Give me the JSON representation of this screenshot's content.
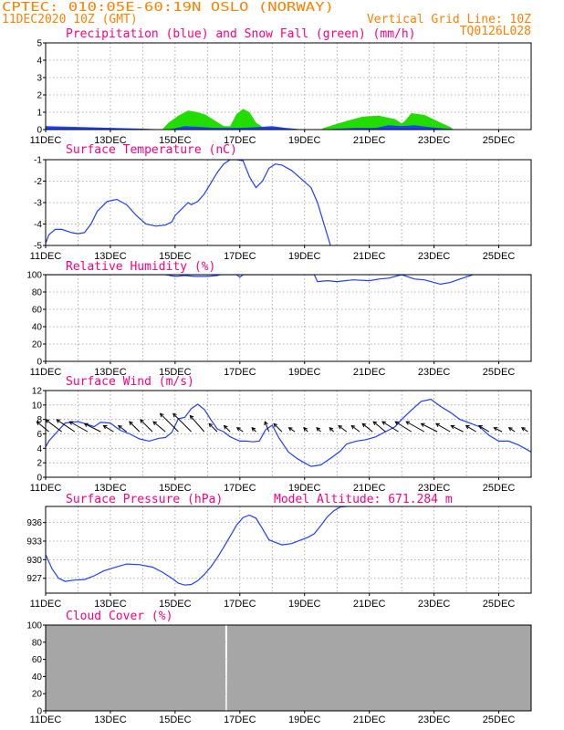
{
  "header": {
    "line1_left": "CPTEC:  010:05E-60:19N  OSLO (NORWAY)",
    "line2_left": "11DEC2020 10Z (GMT)",
    "line1_right": "Vertical Grid Line: 10Z",
    "line2_right": "TQ0126L028"
  },
  "colors": {
    "header": "#ff8000",
    "title": "#ff0080",
    "line": "#1f3fff",
    "precip": "#1f3fff",
    "snow": "#22dd00",
    "cloud": "#a6a6a6",
    "arrow": "#000000"
  },
  "x_ticks": [
    "11DEC",
    "13DEC",
    "15DEC",
    "17DEC",
    "19DEC",
    "21DEC",
    "23DEC",
    "25DEC"
  ],
  "panel_titles": {
    "precip": "Precipitation (blue) and Snow Fall (green) (mm/h)",
    "temp": "Surface Temperature (nC)",
    "rh": "Relative Humidity (%)",
    "wind": "Surface Wind (m/s)",
    "pressure": "Surface Pressure (hPa)",
    "cloud": "Cloud Cover (%)"
  },
  "model_altitude_label": "Model Altitude: 671.284 m",
  "chart_data": [
    {
      "type": "area",
      "id": "precip",
      "title": "Precipitation (blue) and Snow Fall (green) (mm/h)",
      "xlim": [
        0,
        15
      ],
      "ylim": [
        0,
        5
      ],
      "yticks": [
        0,
        1,
        2,
        3,
        4,
        5
      ],
      "grid": true,
      "series": [
        {
          "name": "Precipitation",
          "x": [
            0,
            1,
            2,
            3,
            3.8,
            4.3,
            4.8,
            5.2,
            5.6,
            6,
            6.6,
            7,
            7.4,
            8,
            8.6,
            9,
            9.6,
            10.2,
            10.6,
            11,
            11.4,
            11.8,
            12.4,
            12.8,
            13.2,
            13.6,
            14,
            15
          ],
          "values": [
            0.2,
            0.15,
            0.1,
            0.05,
            0,
            0.2,
            0.15,
            0.1,
            0.1,
            0.1,
            0.15,
            0.2,
            0.1,
            0,
            0,
            0.05,
            0.1,
            0.1,
            0.25,
            0.2,
            0.25,
            0.15,
            0.05,
            0,
            0,
            0,
            0,
            0
          ]
        },
        {
          "name": "Snow Fall",
          "x": [
            0,
            3.5,
            3.6,
            3.8,
            4.1,
            4.4,
            4.7,
            4.95,
            5.2,
            5.5,
            5.7,
            5.9,
            6.1,
            6.3,
            6.5,
            6.7,
            7,
            7.5,
            8,
            8.5,
            8.6,
            9.3,
            9.8,
            10.3,
            10.8,
            11,
            11.1,
            11.3,
            11.7,
            12.2,
            12.5,
            12.6,
            15
          ],
          "values": [
            0,
            0,
            0,
            0.4,
            0.8,
            1.1,
            1.0,
            0.85,
            0.55,
            0.2,
            0.2,
            0.9,
            1.2,
            1.0,
            0.4,
            0.15,
            0.1,
            0.05,
            0,
            0,
            0.1,
            0.5,
            0.75,
            0.8,
            0.6,
            0.35,
            0.5,
            0.95,
            0.85,
            0.4,
            0.15,
            0,
            0
          ]
        }
      ]
    },
    {
      "type": "line",
      "id": "temp",
      "title": "Surface Temperature (nC)",
      "xlim": [
        0,
        15
      ],
      "ylim": [
        -5,
        -1
      ],
      "yticks": [
        -5,
        -4,
        -3,
        -2,
        -1
      ],
      "grid": true,
      "series": [
        {
          "name": "",
          "x": [
            0,
            0.1,
            0.3,
            0.5,
            0.8,
            1,
            1.2,
            1.4,
            1.6,
            1.9,
            2.2,
            2.5,
            2.8,
            3.1,
            3.4,
            3.7,
            3.9,
            4.0,
            4.2,
            4.4,
            4.5,
            4.7,
            4.9,
            5.1,
            5.3,
            5.5,
            5.7,
            5.9,
            6.1,
            6.3,
            6.5,
            6.7,
            6.9,
            7.1,
            7.3,
            7.6,
            7.9,
            8.2,
            8.4,
            8.6,
            8.8
          ],
          "values": [
            -4.9,
            -4.5,
            -4.25,
            -4.25,
            -4.4,
            -4.45,
            -4.4,
            -4.0,
            -3.4,
            -2.95,
            -2.85,
            -3.1,
            -3.6,
            -4.0,
            -4.1,
            -4.05,
            -3.9,
            -3.6,
            -3.3,
            -3.0,
            -3.1,
            -2.95,
            -2.6,
            -2.1,
            -1.6,
            -1.2,
            -1.0,
            -1.0,
            -1.05,
            -1.8,
            -2.3,
            -2.0,
            -1.4,
            -1.2,
            -1.25,
            -1.5,
            -1.9,
            -2.3,
            -3.0,
            -4.0,
            -5.0
          ]
        }
      ]
    },
    {
      "type": "line",
      "id": "rh",
      "title": "Relative Humidity (%)",
      "xlim": [
        0,
        15
      ],
      "ylim": [
        0,
        100
      ],
      "yticks": [
        0,
        20,
        40,
        60,
        80,
        100
      ],
      "grid": true,
      "series": [
        {
          "name": "",
          "x": [
            0,
            3.7,
            4.0,
            4.3,
            4.6,
            5.0,
            5.3,
            5.4,
            5.9,
            6.0,
            6.1,
            6.2,
            8.3,
            8.4,
            8.7,
            9,
            9.5,
            10,
            10.3,
            10.6,
            11,
            11.4,
            11.7,
            12,
            12.2,
            12.5,
            12.8,
            13.2,
            15
          ],
          "values": [
            100,
            100,
            98,
            99,
            98,
            98,
            99,
            100,
            100,
            97,
            100,
            100,
            100,
            92,
            93,
            92,
            94,
            93,
            95,
            96,
            100,
            95,
            94,
            91,
            89,
            91,
            95,
            100,
            100
          ]
        }
      ]
    },
    {
      "type": "line",
      "id": "wind",
      "title": "Surface Wind (m/s)",
      "xlim": [
        0,
        15
      ],
      "ylim": [
        0,
        12
      ],
      "yticks": [
        0,
        2,
        4,
        6,
        8,
        10,
        12
      ],
      "grid": true,
      "series": [
        {
          "name": "",
          "x": [
            0,
            0.1,
            0.3,
            0.6,
            1,
            1.3,
            1.5,
            1.7,
            2,
            2.3,
            2.6,
            2.9,
            3.2,
            3.5,
            3.7,
            3.9,
            4.1,
            4.3,
            4.5,
            4.7,
            4.9,
            5.1,
            5.3,
            5.5,
            5.7,
            6,
            6.2,
            6.4,
            6.6,
            6.8,
            7,
            7.2,
            7.5,
            7.8,
            8.0,
            8.2,
            8.5,
            8.8,
            9.1,
            9.3,
            9.6,
            9.9,
            10.2,
            10.5,
            10.8,
            11,
            11.3,
            11.6,
            11.9,
            12.2,
            12.5,
            12.8,
            13.1,
            13.4,
            13.7,
            14,
            14.3,
            14.6,
            14.8,
            15
          ],
          "values": [
            4.2,
            5,
            6,
            7.5,
            7.7,
            7.3,
            7,
            7.6,
            7.5,
            6.5,
            6,
            5.3,
            5,
            5.4,
            5.5,
            6.2,
            8.1,
            8.3,
            9.5,
            10.1,
            9.4,
            8,
            6.7,
            6.3,
            5.6,
            5,
            5,
            4.9,
            5,
            6.6,
            7.2,
            5.5,
            3.5,
            2.5,
            2,
            1.5,
            1.7,
            2.6,
            3.6,
            4.6,
            5,
            5.2,
            5.6,
            6.3,
            7,
            8,
            9.3,
            10.5,
            10.8,
            9.8,
            9,
            8,
            7.5,
            7,
            5.8,
            5,
            5,
            4.5,
            4,
            3.5
          ]
        }
      ],
      "wind_vectors": [
        {
          "x": 0.1,
          "u": -0.6,
          "v": 0.5
        },
        {
          "x": 0.5,
          "u": -0.8,
          "v": 0.6
        },
        {
          "x": 0.9,
          "u": -0.9,
          "v": 0.6
        },
        {
          "x": 1.3,
          "u": -0.9,
          "v": 0.5
        },
        {
          "x": 1.7,
          "u": -0.8,
          "v": 0.4
        },
        {
          "x": 2.1,
          "u": -0.5,
          "v": 0.3
        },
        {
          "x": 2.5,
          "u": -0.4,
          "v": 0.3
        },
        {
          "x": 2.9,
          "u": -0.5,
          "v": 0.5
        },
        {
          "x": 3.3,
          "u": -0.6,
          "v": 0.6
        },
        {
          "x": 3.7,
          "u": -0.6,
          "v": 0.5
        },
        {
          "x": 4.1,
          "u": -0.9,
          "v": 0.9
        },
        {
          "x": 4.5,
          "u": -0.9,
          "v": 0.9
        },
        {
          "x": 4.9,
          "u": -0.7,
          "v": 0.8
        },
        {
          "x": 5.3,
          "u": -0.4,
          "v": 0.4
        },
        {
          "x": 5.7,
          "u": -0.3,
          "v": 0.3
        },
        {
          "x": 6.1,
          "u": -0.3,
          "v": 0.2
        },
        {
          "x": 6.5,
          "u": -0.2,
          "v": 0.2
        },
        {
          "x": 6.9,
          "u": -0.2,
          "v": 0.5
        },
        {
          "x": 7.3,
          "u": -0.4,
          "v": 0.4
        },
        {
          "x": 7.7,
          "u": -0.3,
          "v": 0.2
        },
        {
          "x": 8.1,
          "u": -0.2,
          "v": 0.2
        },
        {
          "x": 8.5,
          "u": -0.2,
          "v": 0.2
        },
        {
          "x": 8.9,
          "u": -0.2,
          "v": 0.2
        },
        {
          "x": 9.3,
          "u": -0.4,
          "v": 0.3
        },
        {
          "x": 9.7,
          "u": -0.4,
          "v": 0.3
        },
        {
          "x": 10.1,
          "u": -0.5,
          "v": 0.4
        },
        {
          "x": 10.5,
          "u": -0.6,
          "v": 0.5
        },
        {
          "x": 10.9,
          "u": -0.8,
          "v": 0.5
        },
        {
          "x": 11.3,
          "u": -0.8,
          "v": 0.5
        },
        {
          "x": 11.7,
          "u": -0.9,
          "v": 0.5
        },
        {
          "x": 12.1,
          "u": -0.8,
          "v": 0.4
        },
        {
          "x": 12.5,
          "u": -0.7,
          "v": 0.4
        },
        {
          "x": 12.9,
          "u": -0.6,
          "v": 0.3
        },
        {
          "x": 13.3,
          "u": -0.5,
          "v": 0.3
        },
        {
          "x": 13.7,
          "u": -0.5,
          "v": 0.3
        },
        {
          "x": 14.1,
          "u": -0.4,
          "v": 0.2
        },
        {
          "x": 14.5,
          "u": -0.3,
          "v": 0.2
        },
        {
          "x": 14.9,
          "u": -0.3,
          "v": 0.2
        }
      ]
    },
    {
      "type": "line",
      "id": "pressure",
      "title": "Surface Pressure (hPa)",
      "xlim": [
        0,
        15
      ],
      "ylim": [
        924.6,
        938.6
      ],
      "yticks": [
        927,
        930,
        933,
        936
      ],
      "grid": true,
      "series": [
        {
          "name": "",
          "x": [
            0,
            0.2,
            0.4,
            0.6,
            0.9,
            1.2,
            1.5,
            1.8,
            2.1,
            2.5,
            2.9,
            3.3,
            3.6,
            3.9,
            4.1,
            4.3,
            4.5,
            4.7,
            4.9,
            5.1,
            5.3,
            5.5,
            5.7,
            5.9,
            6.1,
            6.3,
            6.5,
            6.7,
            6.9,
            7.1,
            7.3,
            7.6,
            7.9,
            8.1,
            8.3,
            8.5,
            8.7,
            8.9,
            9.1,
            9.3
          ],
          "values": [
            930.8,
            928.5,
            927,
            926.5,
            926.7,
            926.8,
            927.4,
            928.2,
            928.7,
            929.3,
            929.2,
            928.8,
            928,
            927,
            926.2,
            925.9,
            926,
            926.6,
            927.6,
            928.8,
            930.3,
            932,
            933.8,
            935.6,
            936.8,
            937.2,
            936.7,
            935,
            933.2,
            932.8,
            932.4,
            932.6,
            933.2,
            933.6,
            934.2,
            935.5,
            936.9,
            937.9,
            938.5,
            938.6
          ]
        }
      ]
    },
    {
      "type": "area",
      "id": "cloud",
      "title": "Cloud Cover (%)",
      "xlim": [
        0,
        15
      ],
      "ylim": [
        0,
        100
      ],
      "yticks": [
        0,
        20,
        40,
        60,
        80,
        100
      ],
      "grid": true,
      "series": [
        {
          "name": "",
          "x": [
            0,
            5.55,
            5.56,
            5.6,
            5.61,
            15
          ],
          "values": [
            100,
            100,
            0,
            0,
            100,
            100
          ]
        }
      ]
    }
  ]
}
